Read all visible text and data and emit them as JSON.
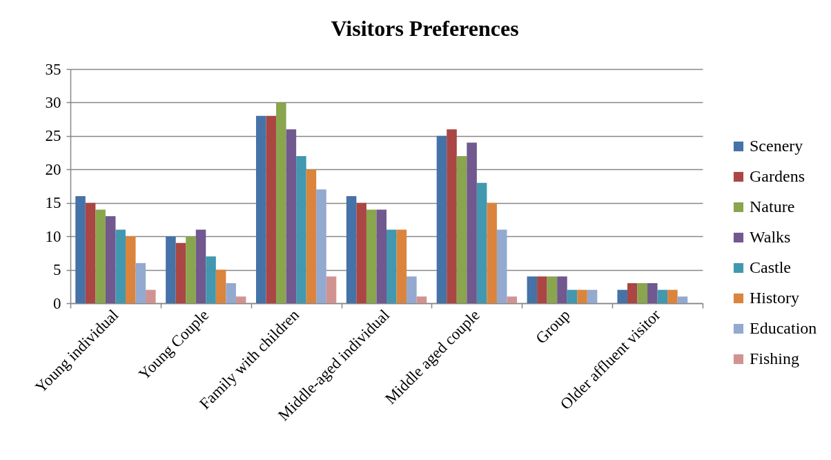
{
  "chart_data": {
    "type": "bar",
    "title": "Visitors Preferences",
    "categories": [
      "Young individual",
      "Young Couple",
      "Family with children",
      "Middle-aged individual",
      "Middle aged couple",
      "Group",
      "Older affluent visitor"
    ],
    "series": [
      {
        "name": "Scenery",
        "color": "#4572a7",
        "values": [
          16,
          10,
          28,
          16,
          25,
          4,
          2
        ]
      },
      {
        "name": "Gardens",
        "color": "#aa4643",
        "values": [
          15,
          9,
          28,
          15,
          26,
          4,
          3
        ]
      },
      {
        "name": "Nature",
        "color": "#89a54e",
        "values": [
          14,
          10,
          30,
          14,
          22,
          4,
          3
        ]
      },
      {
        "name": "Walks",
        "color": "#71588f",
        "values": [
          13,
          11,
          26,
          14,
          24,
          4,
          3
        ]
      },
      {
        "name": "Castle",
        "color": "#4198af",
        "values": [
          11,
          7,
          22,
          11,
          18,
          2,
          2
        ]
      },
      {
        "name": "History",
        "color": "#db843d",
        "values": [
          10,
          5,
          20,
          11,
          15,
          2,
          2
        ]
      },
      {
        "name": "Education",
        "color": "#93a9cf",
        "values": [
          6,
          3,
          17,
          4,
          11,
          2,
          1
        ]
      },
      {
        "name": "Fishing",
        "color": "#d19392",
        "values": [
          2,
          1,
          4,
          1,
          1,
          0,
          0
        ]
      }
    ],
    "ylim": [
      0,
      35
    ],
    "yticks": [
      0,
      5,
      10,
      15,
      20,
      25,
      30,
      35
    ],
    "grid": "y",
    "legend": "right"
  }
}
